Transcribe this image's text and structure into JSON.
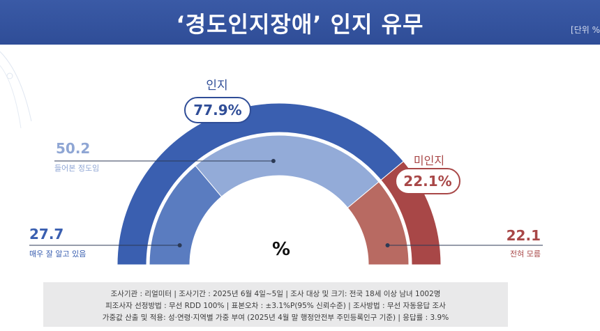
{
  "header": {
    "title": "‘경도인지장애’ 인지 유무",
    "unit": "[단위 %"
  },
  "chart_data": {
    "type": "pie",
    "style": "semi-donut",
    "center_label": "%",
    "outer": [
      {
        "label": "인지",
        "value": 77.9,
        "display": "77.9%",
        "color": "#3a5fb0"
      },
      {
        "label": "미인지",
        "value": 22.1,
        "display": "22.1%",
        "color": "#a84747"
      }
    ],
    "inner": [
      {
        "label": "매우 잘 알고 있음",
        "value": 27.7,
        "display": "27.7",
        "color": "#5a7cc0"
      },
      {
        "label": "들어본 정도임",
        "value": 50.2,
        "display": "50.2",
        "color": "#93abd8"
      },
      {
        "label": "전혀 모름",
        "value": 22.1,
        "display": "22.1",
        "color": "#b86a62"
      }
    ]
  },
  "footer": {
    "line1": "조사기관 : 리얼미터  |  조사기간 : 2025년 6월 4일~5일  |  조사 대상 및 크기: 전국 18세 이상 남녀 1002명",
    "line2": "피조사자 선정방법 : 무선 RDD 100%  |  표본오차 : ±3.1%P(95% 신뢰수준)  |  조사방법 : 무선 자동응답 조사",
    "line3": "가중값 산출 및 적용: 성·연령·지역별 가중 부여 (2025년 4월 말 행정안전부 주민등록인구 기준)  |  응답률 : 3.9%"
  }
}
